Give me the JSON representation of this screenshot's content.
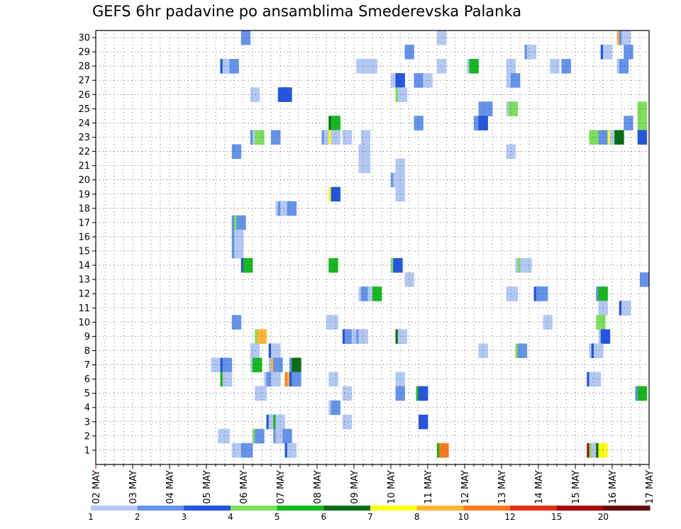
{
  "chart_data": {
    "type": "heatmap",
    "title": "GEFS 6hr padavine po ansamblima Smederevska Palanka",
    "xlabel": "",
    "ylabel": "",
    "x_ticks": [
      "02 MAY",
      "03 MAY",
      "04 MAY",
      "05 MAY",
      "06 MAY",
      "07 MAY",
      "08 MAY",
      "09 MAY",
      "10 MAY",
      "11 MAY",
      "12 MAY",
      "13 MAY",
      "14 MAY",
      "15 MAY",
      "16 MAY",
      "17 MAY"
    ],
    "y_ticks": [
      "1",
      "2",
      "3",
      "4",
      "5",
      "6",
      "7",
      "8",
      "9",
      "10",
      "11",
      "12",
      "13",
      "14",
      "15",
      "16",
      "17",
      "18",
      "19",
      "20",
      "21",
      "22",
      "23",
      "24",
      "25",
      "26",
      "27",
      "28",
      "29",
      "30"
    ],
    "x_range": [
      "02 MAY 00z",
      "17 MAY 00z"
    ],
    "y_range": [
      1,
      30
    ],
    "time_step_hours": 6,
    "grid": true,
    "legend_placement": "bottom",
    "legend": {
      "labels": [
        "1",
        "2",
        "3",
        "4",
        "5",
        "6",
        "7",
        "8",
        "10",
        "12",
        "15",
        "20"
      ],
      "colors": [
        "#b4c8f5",
        "#6493eb",
        "#2355e0",
        "#7ddf5a",
        "#14b91e",
        "#0a6e14",
        "#ffff14",
        "#ffb432",
        "#ff781e",
        "#e13219",
        "#aa0a0a",
        "#640a0a"
      ]
    },
    "cells": [
      {
        "m": 30,
        "s": [
          [
            15.75,
            "#6493eb"
          ],
          [
            37,
            "#b4c8f5"
          ],
          [
            56.5,
            "#ffb432"
          ],
          [
            56.75,
            "#6493eb"
          ],
          [
            57,
            "#b4c8f5"
          ]
        ]
      },
      {
        "m": 29,
        "s": [
          [
            33.5,
            "#6493eb"
          ],
          [
            46.5,
            "#6493eb"
          ],
          [
            46.75,
            "#b4c8f5"
          ],
          [
            54.75,
            "#2355e0"
          ],
          [
            55,
            "#b4c8f5"
          ],
          [
            57.25,
            "#6493eb"
          ]
        ]
      },
      {
        "m": 28,
        "s": [
          [
            13.5,
            "#2355e0"
          ],
          [
            13.75,
            "#b4c8f5"
          ],
          [
            14,
            "#b4c8f5"
          ],
          [
            14.25,
            "#b4c8f5"
          ],
          [
            14.5,
            "#6493eb"
          ],
          [
            28.25,
            "#b4c8f5"
          ],
          [
            28.5,
            "#b4c8f5"
          ],
          [
            28.75,
            "#b4c8f5"
          ],
          [
            29,
            "#b4c8f5"
          ],
          [
            29.25,
            "#b4c8f5"
          ],
          [
            29.5,
            "#b4c8f5"
          ],
          [
            37,
            "#b4c8f5"
          ],
          [
            40.25,
            "#b4c8f5"
          ],
          [
            40.5,
            "#14b91e"
          ],
          [
            44.5,
            "#b4c8f5"
          ],
          [
            49.25,
            "#b4c8f5"
          ],
          [
            50.5,
            "#6493eb"
          ],
          [
            56.5,
            "#b4c8f5"
          ],
          [
            56.75,
            "#6493eb"
          ]
        ]
      },
      {
        "m": 27,
        "s": [
          [
            32,
            "#b4c8f5"
          ],
          [
            32.5,
            "#2355e0"
          ],
          [
            34.5,
            "#6493eb"
          ],
          [
            35.5,
            "#b4c8f5"
          ],
          [
            44.5,
            "#b4c8f5"
          ],
          [
            45,
            "#6493eb"
          ]
        ]
      },
      {
        "m": 26,
        "s": [
          [
            16.75,
            "#b4c8f5"
          ],
          [
            19.75,
            "#2355e0"
          ],
          [
            20,
            "#2355e0"
          ],
          [
            20.25,
            "#2355e0"
          ],
          [
            32.5,
            "#7ddf5a"
          ],
          [
            32.75,
            "#b4c8f5"
          ]
        ]
      },
      {
        "m": 25,
        "s": [
          [
            41.5,
            "#6493eb"
          ],
          [
            41.75,
            "#6493eb"
          ],
          [
            42,
            "#6493eb"
          ],
          [
            44.5,
            "#b4c8f5"
          ],
          [
            44.75,
            "#7ddf5a"
          ],
          [
            58.75,
            "#7ddf5a"
          ]
        ]
      },
      {
        "m": 24,
        "s": [
          [
            25.25,
            "#0a6e14"
          ],
          [
            25.5,
            "#14b91e"
          ],
          [
            34.5,
            "#6493eb"
          ],
          [
            41,
            "#6493eb"
          ],
          [
            41.5,
            "#2355e0"
          ],
          [
            57.25,
            "#6493eb"
          ],
          [
            58.75,
            "#7ddf5a"
          ]
        ]
      },
      {
        "m": 23,
        "s": [
          [
            16.75,
            "#6493eb"
          ],
          [
            17,
            "#b4c8f5"
          ],
          [
            17.25,
            "#7ddf5a"
          ],
          [
            19,
            "#6493eb"
          ],
          [
            24.5,
            "#6493eb"
          ],
          [
            24.75,
            "#b4c8f5"
          ],
          [
            25,
            "#b4c8f5"
          ],
          [
            25.25,
            "#ffff14"
          ],
          [
            25.5,
            "#b4c8f5"
          ],
          [
            26.75,
            "#b4c8f5"
          ],
          [
            28.75,
            "#b4c8f5"
          ],
          [
            53.5,
            "#7ddf5a"
          ],
          [
            54.5,
            "#6493eb"
          ],
          [
            55,
            "#6493eb"
          ],
          [
            55.5,
            "#ffff14"
          ],
          [
            55.75,
            "#b4c8f5"
          ],
          [
            56,
            "#b4c8f5"
          ],
          [
            56.25,
            "#0a6e14"
          ],
          [
            58.75,
            "#2355e0"
          ]
        ]
      },
      {
        "m": 22,
        "s": [
          [
            14.75,
            "#6493eb"
          ],
          [
            28.5,
            "#b4c8f5"
          ],
          [
            28.75,
            "#b4c8f5"
          ],
          [
            44.5,
            "#b4c8f5"
          ]
        ]
      },
      {
        "m": 21,
        "s": [
          [
            28.5,
            "#b4c8f5"
          ],
          [
            28.75,
            "#b4c8f5"
          ],
          [
            32.5,
            "#b4c8f5"
          ]
        ]
      },
      {
        "m": 20,
        "s": [
          [
            32,
            "#6493eb"
          ],
          [
            32.25,
            "#b4c8f5"
          ],
          [
            32.5,
            "#b4c8f5"
          ]
        ]
      },
      {
        "m": 19,
        "s": [
          [
            32.5,
            "#b4c8f5"
          ],
          [
            25.25,
            "#ffff14"
          ],
          [
            25.5,
            "#2355e0"
          ]
        ]
      },
      {
        "m": 18,
        "s": [
          [
            19.5,
            "#b4c8f5"
          ],
          [
            19.75,
            "#6493eb"
          ],
          [
            20,
            "#b4c8f5"
          ],
          [
            20.25,
            "#b4c8f5"
          ],
          [
            20.5,
            "#b4c8f5"
          ],
          [
            20.75,
            "#6493eb"
          ]
        ]
      },
      {
        "m": 17,
        "s": [
          [
            14.75,
            "#6493eb"
          ],
          [
            15,
            "#7ddf5a"
          ],
          [
            15.25,
            "#6493eb"
          ]
        ]
      },
      {
        "m": 16,
        "s": [
          [
            14.75,
            "#6493eb"
          ],
          [
            15,
            "#b4c8f5"
          ]
        ]
      },
      {
        "m": 15,
        "s": [
          [
            14.75,
            "#6493eb"
          ],
          [
            15,
            "#b4c8f5"
          ]
        ]
      },
      {
        "m": 14,
        "s": [
          [
            15.75,
            "#2355e0"
          ],
          [
            16,
            "#14b91e"
          ],
          [
            25.25,
            "#14b91e"
          ],
          [
            32,
            "#7ddf5a"
          ],
          [
            32.25,
            "#2355e0"
          ],
          [
            45.5,
            "#b4c8f5"
          ],
          [
            45.75,
            "#7ddf5a"
          ],
          [
            46,
            "#b4c8f5"
          ],
          [
            46.25,
            "#b4c8f5"
          ]
        ]
      },
      {
        "m": 13,
        "s": [
          [
            33.5,
            "#b4c8f5"
          ],
          [
            59,
            "#6493eb"
          ]
        ]
      },
      {
        "m": 12,
        "s": [
          [
            28.5,
            "#b4c8f5"
          ],
          [
            28.75,
            "#6493eb"
          ],
          [
            29.5,
            "#b4c8f5"
          ],
          [
            29.75,
            "#b4c8f5"
          ],
          [
            30,
            "#14b91e"
          ],
          [
            44.5,
            "#b4c8f5"
          ],
          [
            44.75,
            "#b4c8f5"
          ],
          [
            47.5,
            "#2355e0"
          ],
          [
            47.75,
            "#6493eb"
          ],
          [
            48,
            "#6493eb"
          ],
          [
            54.25,
            "#6493eb"
          ],
          [
            54.5,
            "#14b91e"
          ]
        ]
      },
      {
        "m": 11,
        "s": [
          [
            54.5,
            "#b4c8f5"
          ],
          [
            56.75,
            "#2355e0"
          ],
          [
            57,
            "#b4c8f5"
          ]
        ]
      },
      {
        "m": 10,
        "s": [
          [
            14.75,
            "#6493eb"
          ],
          [
            25,
            "#b4c8f5"
          ],
          [
            25.25,
            "#b4c8f5"
          ],
          [
            48.5,
            "#b4c8f5"
          ],
          [
            54.25,
            "#7ddf5a"
          ]
        ]
      },
      {
        "m": 9,
        "s": [
          [
            17.25,
            "#7ddf5a"
          ],
          [
            17.5,
            "#ffb432"
          ],
          [
            26.75,
            "#2355e0"
          ],
          [
            27,
            "#6493eb"
          ],
          [
            27.75,
            "#b4c8f5"
          ],
          [
            28.25,
            "#6493eb"
          ],
          [
            28.5,
            "#b4c8f5"
          ],
          [
            32.5,
            "#0a6e14"
          ],
          [
            32.75,
            "#b4c8f5"
          ],
          [
            54.5,
            "#b4c8f5"
          ],
          [
            54.75,
            "#2355e0"
          ]
        ]
      },
      {
        "m": 8,
        "s": [
          [
            16.75,
            "#b4c8f5"
          ],
          [
            18.75,
            "#2355e0"
          ],
          [
            19,
            "#b4c8f5"
          ],
          [
            41.5,
            "#b4c8f5"
          ],
          [
            45.5,
            "#7ddf5a"
          ],
          [
            45.75,
            "#6493eb"
          ],
          [
            53.5,
            "#b4c8f5"
          ],
          [
            53.75,
            "#2355e0"
          ],
          [
            54,
            "#b4c8f5"
          ]
        ]
      },
      {
        "m": 7,
        "s": [
          [
            12.5,
            "#b4c8f5"
          ],
          [
            13.5,
            "#2355e0"
          ],
          [
            13.75,
            "#6493eb"
          ],
          [
            16.75,
            "#b4c8f5"
          ],
          [
            17,
            "#14b91e"
          ],
          [
            18.75,
            "#b4c8f5"
          ],
          [
            19,
            "#ffb432"
          ],
          [
            19.25,
            "#6493eb"
          ],
          [
            21,
            "#6493eb"
          ],
          [
            21.25,
            "#0a6e14"
          ]
        ]
      },
      {
        "m": 6,
        "s": [
          [
            13.5,
            "#14b91e"
          ],
          [
            13.75,
            "#b4c8f5"
          ],
          [
            18.25,
            "#b4c8f5"
          ],
          [
            18.5,
            "#6493eb"
          ],
          [
            18.75,
            "#6493eb"
          ],
          [
            19,
            "#b4c8f5"
          ],
          [
            20.5,
            "#ff781e"
          ],
          [
            20.75,
            "#ffb432"
          ],
          [
            21,
            "#2355e0"
          ],
          [
            21.25,
            "#6493eb"
          ],
          [
            25.25,
            "#b4c8f5"
          ],
          [
            32.5,
            "#b4c8f5"
          ],
          [
            53.25,
            "#2355e0"
          ],
          [
            53.5,
            "#b4c8f5"
          ],
          [
            53.75,
            "#b4c8f5"
          ]
        ]
      },
      {
        "m": 5,
        "s": [
          [
            17.25,
            "#b4c8f5"
          ],
          [
            17.5,
            "#b4c8f5"
          ],
          [
            26.75,
            "#b4c8f5"
          ],
          [
            32.5,
            "#6493eb"
          ],
          [
            34.75,
            "#14b91e"
          ],
          [
            35,
            "#2355e0"
          ],
          [
            58.5,
            "#6493eb"
          ],
          [
            58.75,
            "#14b91e"
          ]
        ]
      },
      {
        "m": 4,
        "s": [
          [
            25.25,
            "#b4c8f5"
          ],
          [
            25.5,
            "#6493eb"
          ]
        ]
      },
      {
        "m": 3,
        "s": [
          [
            18.5,
            "#2355e0"
          ],
          [
            18.75,
            "#b4c8f5"
          ],
          [
            19,
            "#b4c8f5"
          ],
          [
            19.25,
            "#14b91e"
          ],
          [
            19.5,
            "#b4c8f5"
          ],
          [
            26.75,
            "#b4c8f5"
          ],
          [
            35,
            "#2355e0"
          ]
        ]
      },
      {
        "m": 2,
        "s": [
          [
            13.25,
            "#b4c8f5"
          ],
          [
            13.5,
            "#b4c8f5"
          ],
          [
            17,
            "#7ddf5a"
          ],
          [
            17.25,
            "#6493eb"
          ],
          [
            19.25,
            "#6493eb"
          ],
          [
            19.5,
            "#b4c8f5"
          ],
          [
            20.25,
            "#6493eb"
          ]
        ]
      },
      {
        "m": 1,
        "s": [
          [
            14.75,
            "#b4c8f5"
          ],
          [
            15.75,
            "#6493eb"
          ],
          [
            16,
            "#6493eb"
          ],
          [
            20.5,
            "#2355e0"
          ],
          [
            20.75,
            "#b4c8f5"
          ],
          [
            37,
            "#14b91e"
          ],
          [
            37.25,
            "#ff781e"
          ],
          [
            53.25,
            "#aa0a0a"
          ],
          [
            53.5,
            "#7ddf5a"
          ],
          [
            53.75,
            "#b4c8f5"
          ],
          [
            54.25,
            "#0a6e14"
          ],
          [
            54.5,
            "#ffff14"
          ]
        ]
      }
    ]
  }
}
